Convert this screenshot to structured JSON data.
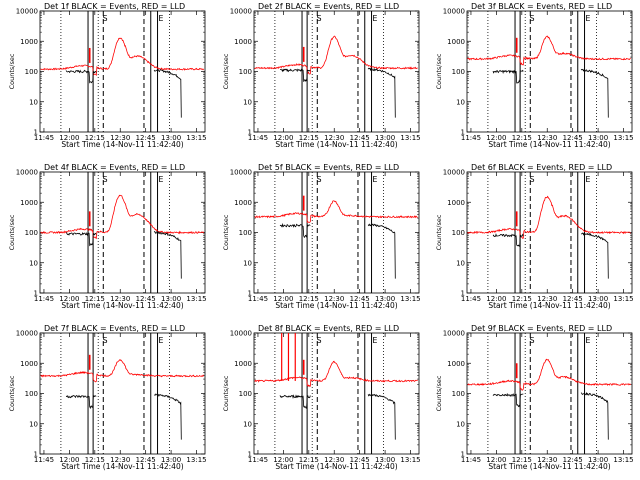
{
  "chart_data": {
    "type": "line",
    "y_scale": "log",
    "ylim": [
      1,
      10000
    ],
    "y_ticks": [
      1,
      10,
      100,
      1000,
      10000
    ],
    "y_tick_labels": [
      "1",
      "10",
      "100",
      "1000",
      "10000"
    ],
    "ylabel": "Counts/sec",
    "xlabel": "Start Time (14-Nov-11 11:42:40)",
    "xlim": [
      "11:42:40",
      "13:20:00"
    ],
    "x_ticks": [
      "11:45",
      "12:00",
      "12:15",
      "12:30",
      "12:45",
      "13:00",
      "13:15"
    ],
    "series_colors": {
      "events": "#000000",
      "lld": "#ff0000"
    },
    "markers": [
      {
        "style": "dotted",
        "time": "11:55"
      },
      {
        "style": "solid",
        "time": "12:11"
      },
      {
        "style": "solid",
        "time": "12:14"
      },
      {
        "style": "dotted",
        "time": "12:17"
      },
      {
        "style": "dashed",
        "time": "12:20"
      },
      {
        "style": "dashed",
        "time": "12:44"
      },
      {
        "style": "solid",
        "time": "12:48"
      },
      {
        "style": "solid",
        "time": "12:52"
      },
      {
        "style": "dotted",
        "time": "12:59"
      }
    ],
    "marker_labels": [
      {
        "text": "S",
        "time": "12:21"
      },
      {
        "text": "E",
        "time": "12:54"
      }
    ],
    "panels": [
      {
        "title": "Det 1f BLACK = Events, RED = LLD",
        "base": 120,
        "peak": 1300,
        "events_base": 100,
        "events_late": 110,
        "spike": 0
      },
      {
        "title": "Det 2f BLACK = Events, RED = LLD",
        "base": 130,
        "peak": 1400,
        "events_base": 110,
        "events_late": 120,
        "spike": 0
      },
      {
        "title": "Det 3f BLACK = Events, RED = LLD",
        "base": 260,
        "peak": 1400,
        "events_base": 100,
        "events_late": 110,
        "spike": 0
      },
      {
        "title": "Det 4f BLACK = Events, RED = LLD",
        "base": 100,
        "peak": 1700,
        "events_base": 90,
        "events_late": 100,
        "spike": 0
      },
      {
        "title": "Det 5f BLACK = Events, RED = LLD",
        "base": 330,
        "peak": 1100,
        "events_base": 170,
        "events_late": 180,
        "spike": 0
      },
      {
        "title": "Det 6f BLACK = Events, RED = LLD",
        "base": 100,
        "peak": 1500,
        "events_base": 80,
        "events_late": 90,
        "spike": 0
      },
      {
        "title": "Det 7f BLACK = Events, RED = LLD",
        "base": 380,
        "peak": 1300,
        "events_base": 80,
        "events_late": 90,
        "spike": 0
      },
      {
        "title": "Det 8f BLACK = Events, RED = LLD",
        "base": 260,
        "peak": 1100,
        "events_base": 80,
        "events_late": 90,
        "spike": 10000
      },
      {
        "title": "Det 9f BLACK = Events, RED = LLD",
        "base": 200,
        "peak": 1300,
        "events_base": 90,
        "events_late": 100,
        "spike": 0
      }
    ]
  }
}
